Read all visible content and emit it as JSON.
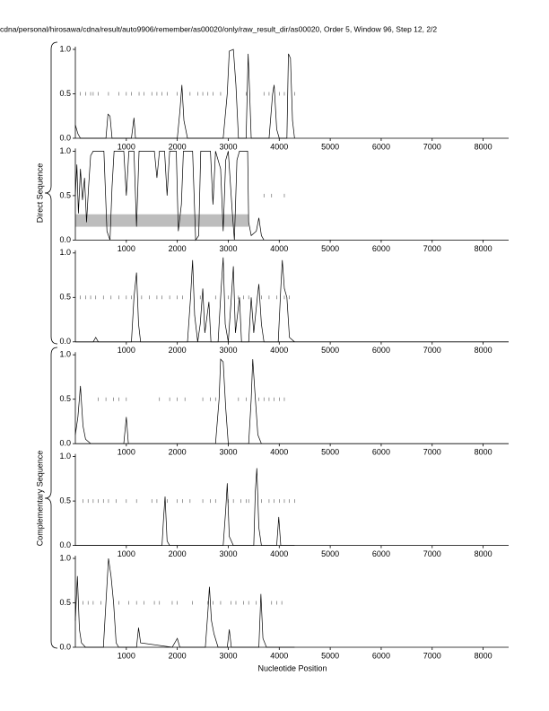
{
  "title": "cdna/personal/hirosawa/cdna/result/auto9906/remember/as00020/only/raw_result_dir/as00020, Order 5, Window 96, Step 12, 2/2",
  "xlabel": "Nucleotide Position",
  "groups": [
    "Direct Sequence",
    "Complementary Sequence"
  ],
  "chart_data": [
    {
      "type": "line",
      "color": "#000000",
      "x": [
        0,
        50,
        100,
        600,
        640,
        680,
        720,
        1100,
        1150,
        1180,
        2000,
        2050,
        2090,
        2130,
        2200,
        2900,
        2980,
        3020,
        3100,
        3150,
        3200,
        3350,
        3390,
        3420,
        3450,
        3800,
        3870,
        3900,
        3950,
        4000,
        4150,
        4180,
        4220,
        4260,
        4300
      ],
      "values": [
        0.15,
        0.05,
        0,
        0,
        0.27,
        0.25,
        0,
        0,
        0.23,
        0,
        0,
        0.3,
        0.6,
        0.2,
        0,
        0,
        0.5,
        0.98,
        1.0,
        0.6,
        0,
        0,
        0.95,
        0.5,
        0,
        0,
        0.5,
        0.6,
        0.1,
        0,
        0,
        0.95,
        0.9,
        0.2,
        0
      ],
      "markers": [
        100,
        200,
        300,
        350,
        450,
        650,
        850,
        1000,
        1100,
        1250,
        1350,
        1500,
        1600,
        1700,
        1800,
        2000,
        2250,
        2400,
        2500,
        2600,
        2700,
        2850,
        3350,
        3700,
        3800,
        4000,
        4100,
        4300
      ],
      "xlim": [
        0,
        8500
      ],
      "ylim": [
        0,
        1
      ],
      "xticks": [
        1000,
        2000,
        3000,
        4000,
        5000,
        6000,
        7000,
        8000
      ],
      "yticks": [
        {
          "value": 0,
          "label": "0.0"
        },
        0.5,
        {
          "value": 1,
          "label": "1.0"
        }
      ]
    },
    {
      "type": "line",
      "color": "#000000",
      "x": [
        0,
        30,
        60,
        100,
        140,
        180,
        220,
        260,
        300,
        350,
        560,
        620,
        680,
        720,
        760,
        950,
        1000,
        1050,
        1150,
        1200,
        1250,
        1550,
        1600,
        1650,
        1750,
        1800,
        1850,
        1980,
        2020,
        2080,
        2120,
        2300,
        2360,
        2420,
        2460,
        2650,
        2700,
        2750,
        2850,
        2900,
        2950,
        3000,
        3080,
        3120,
        3170,
        3220,
        3380,
        3400,
        3450,
        3550,
        3600,
        3650,
        3700
      ],
      "values": [
        0.5,
        0.85,
        0.3,
        0.8,
        0.45,
        0.7,
        0.2,
        0.6,
        0.95,
        1.0,
        1.0,
        0.1,
        0.0,
        0.6,
        1.0,
        1.0,
        0.5,
        1.0,
        1.0,
        0.15,
        1.0,
        1.0,
        0.7,
        1.0,
        1.0,
        0.5,
        1.0,
        1.0,
        0.1,
        0.4,
        1.0,
        1.0,
        0.0,
        0.05,
        1.0,
        1.0,
        0.4,
        1.0,
        0.8,
        0.1,
        0.9,
        1.0,
        0.3,
        0.0,
        0.9,
        1.0,
        1.0,
        0.2,
        0.05,
        0.1,
        0.25,
        0.05,
        0
      ],
      "markers": [
        3700,
        3850,
        4100
      ],
      "highlight": {
        "x": [
          0,
          3400
        ],
        "y": [
          0.15,
          0.29
        ]
      },
      "xlim": [
        0,
        8500
      ],
      "ylim": [
        0,
        1
      ],
      "xticks": [
        1000,
        2000,
        3000,
        4000,
        5000,
        6000,
        7000,
        8000
      ],
      "yticks": [
        {
          "value": 0,
          "label": "0.0"
        },
        0.5,
        {
          "value": 1,
          "label": "1.0"
        }
      ]
    },
    {
      "type": "line",
      "color": "#000000",
      "x": [
        0,
        350,
        400,
        450,
        1100,
        1150,
        1200,
        1240,
        1280,
        2200,
        2260,
        2300,
        2340,
        2400,
        2450,
        2500,
        2540,
        2620,
        2660,
        2800,
        2860,
        2900,
        2940,
        3000,
        3060,
        3100,
        3140,
        3220,
        3260,
        3400,
        3450,
        3500,
        3570,
        3600,
        3650,
        3700,
        3980,
        4030,
        4060,
        4100,
        4150,
        4200,
        4300
      ],
      "values": [
        0,
        0,
        0.05,
        0,
        0,
        0.5,
        0.78,
        0.2,
        0,
        0,
        0.5,
        0.92,
        0.3,
        0,
        0.2,
        0.6,
        0.1,
        0.45,
        0,
        0,
        0.6,
        0.95,
        0.2,
        0,
        0.5,
        0.85,
        0.1,
        0.5,
        0,
        0,
        0.5,
        0.1,
        0.5,
        0.65,
        0.2,
        0,
        0,
        0.6,
        0.92,
        0.6,
        0.5,
        0.05,
        0
      ],
      "markers": [
        100,
        200,
        300,
        400,
        550,
        700,
        850,
        1000,
        1100,
        1300,
        1450,
        1600,
        1700,
        1850,
        2000,
        2100,
        2450,
        2750,
        3000,
        3200,
        3300,
        3400,
        3650,
        3800,
        3950,
        4100,
        4200
      ],
      "xlim": [
        0,
        8500
      ],
      "ylim": [
        0,
        1
      ],
      "xticks": [
        1000,
        2000,
        3000,
        4000,
        5000,
        6000,
        7000,
        8000
      ],
      "yticks": [
        {
          "value": 0,
          "label": "0.0"
        },
        0.5,
        {
          "value": 1,
          "label": "1.0"
        }
      ]
    },
    {
      "type": "line",
      "color": "#000000",
      "x": [
        0,
        50,
        100,
        150,
        200,
        300,
        950,
        1000,
        1040,
        2750,
        2820,
        2850,
        2900,
        2950,
        3000,
        3400,
        3450,
        3480,
        3520,
        3580,
        3650
      ],
      "values": [
        0.1,
        0.3,
        0.65,
        0.2,
        0.05,
        0,
        0,
        0.3,
        0,
        0,
        0.5,
        0.95,
        0.92,
        0.4,
        0,
        0,
        0.5,
        0.95,
        0.6,
        0.1,
        0
      ],
      "markers": [
        450,
        600,
        750,
        850,
        1000,
        1650,
        1850,
        2000,
        2150,
        2500,
        2650,
        2750,
        3200,
        3350,
        3600,
        3700,
        3800,
        3900,
        4000,
        4100
      ],
      "xlim": [
        0,
        8500
      ],
      "ylim": [
        0,
        1
      ],
      "xticks": [
        1000,
        2000,
        3000,
        4000,
        5000,
        6000,
        7000,
        8000
      ],
      "yticks": [
        {
          "value": 0,
          "label": "0.0"
        },
        0.5,
        {
          "value": 1,
          "label": "1.0"
        }
      ]
    },
    {
      "type": "line",
      "color": "#000000",
      "x": [
        0,
        1700,
        1730,
        1760,
        1800,
        1850,
        2900,
        2950,
        2980,
        3020,
        3100,
        3500,
        3530,
        3560,
        3600,
        3650,
        3950,
        3990,
        4030,
        4300
      ],
      "values": [
        0,
        0,
        0.3,
        0.55,
        0.05,
        0,
        0,
        0.4,
        0.7,
        0.1,
        0,
        0,
        0.6,
        0.87,
        0.2,
        0,
        0,
        0.32,
        0,
        0
      ],
      "markers": [
        150,
        250,
        350,
        450,
        550,
        650,
        800,
        1000,
        1200,
        1500,
        1600,
        1800,
        2000,
        2100,
        2250,
        2500,
        2650,
        2750,
        3000,
        3100,
        3250,
        3350,
        3400,
        3650,
        3800,
        3900,
        4000,
        4100,
        4200,
        4300
      ],
      "xlim": [
        0,
        8500
      ],
      "ylim": [
        0,
        1
      ],
      "xticks": [
        1000,
        2000,
        3000,
        4000,
        5000,
        6000,
        7000,
        8000
      ],
      "yticks": [
        {
          "value": 0,
          "label": "0.0"
        },
        0.5,
        {
          "value": 1,
          "label": "1.0"
        }
      ]
    },
    {
      "type": "line",
      "color": "#000000",
      "x": [
        0,
        40,
        80,
        120,
        200,
        550,
        600,
        650,
        700,
        750,
        800,
        850,
        1200,
        1240,
        1280,
        1900,
        2000,
        2050,
        2550,
        2600,
        2630,
        2670,
        2720,
        2800,
        2980,
        3020,
        3060,
        3600,
        3640,
        3680,
        3750,
        4300
      ],
      "values": [
        0.3,
        0.8,
        0.2,
        0.05,
        0,
        0,
        0.5,
        1.0,
        0.8,
        0.5,
        0.05,
        0,
        0,
        0.22,
        0.05,
        0,
        0.1,
        0,
        0,
        0.4,
        0.68,
        0.3,
        0.15,
        0,
        0,
        0.2,
        0,
        0,
        0.6,
        0.1,
        0,
        0
      ],
      "markers": [
        150,
        250,
        350,
        500,
        850,
        1050,
        1200,
        1350,
        1550,
        1650,
        1900,
        2000,
        2300,
        2600,
        2700,
        2850,
        3050,
        3150,
        3300,
        3400,
        3550,
        3850,
        3950,
        4050
      ],
      "xlim": [
        0,
        8500
      ],
      "ylim": [
        0,
        1
      ],
      "xticks": [
        1000,
        2000,
        3000,
        4000,
        5000,
        6000,
        7000,
        8000
      ],
      "yticks": [
        {
          "value": 0,
          "label": "0.0"
        },
        0.5,
        {
          "value": 1,
          "label": "1.0"
        }
      ]
    }
  ]
}
